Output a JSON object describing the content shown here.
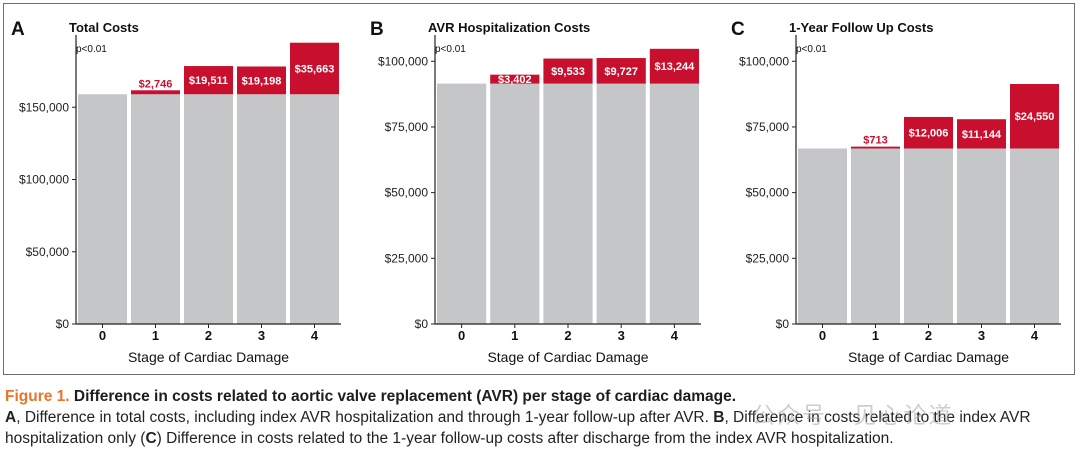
{
  "chart_data": [
    {
      "panel": "A",
      "type": "bar",
      "stacked": true,
      "title": "Total Costs",
      "pvalue": "p<0.01",
      "xlabel": "Stage of Cardiac Damage",
      "ylabel": "",
      "categories": [
        "0",
        "1",
        "2",
        "3",
        "4"
      ],
      "series": [
        {
          "values": [
            159000,
            159000,
            159000,
            159000,
            159000
          ]
        },
        {
          "values": [
            0,
            2746,
            19511,
            19198,
            35663
          ]
        }
      ],
      "bar_labels": [
        "",
        "$2,746",
        "$19,511",
        "$19,198",
        "$35,663"
      ],
      "label_inside": [
        false,
        false,
        true,
        true,
        true
      ],
      "ylim": [
        0,
        200000
      ],
      "yticks": [
        0,
        50000,
        100000,
        150000
      ],
      "ytick_labels": [
        "$0",
        "$50,000",
        "$100,000",
        "$150,000"
      ],
      "grid": false
    },
    {
      "panel": "B",
      "type": "bar",
      "stacked": true,
      "title": "AVR Hospitalization Costs",
      "pvalue": "p<0.01",
      "xlabel": "Stage of Cardiac Damage",
      "ylabel": "",
      "categories": [
        "0",
        "1",
        "2",
        "3",
        "4"
      ],
      "series": [
        {
          "values": [
            91500,
            91500,
            91500,
            91500,
            91500
          ]
        },
        {
          "values": [
            0,
            3402,
            9533,
            9727,
            13244
          ]
        }
      ],
      "bar_labels": [
        "",
        "$3,402",
        "$9,533",
        "$9,727",
        "$13,244"
      ],
      "label_inside": [
        false,
        true,
        true,
        true,
        true
      ],
      "ylim": [
        0,
        110000
      ],
      "yticks": [
        0,
        25000,
        50000,
        75000,
        100000
      ],
      "ytick_labels": [
        "$0",
        "$25,000",
        "$50,000",
        "$75,000",
        "$100,000"
      ],
      "grid": false
    },
    {
      "panel": "C",
      "type": "bar",
      "stacked": true,
      "title": "1-Year Follow Up Costs",
      "pvalue": "p<0.01",
      "xlabel": "Stage of Cardiac Damage",
      "ylabel": "",
      "categories": [
        "0",
        "1",
        "2",
        "3",
        "4"
      ],
      "series": [
        {
          "values": [
            66800,
            66800,
            66800,
            66800,
            66800
          ]
        },
        {
          "values": [
            0,
            713,
            12006,
            11144,
            24550
          ]
        }
      ],
      "bar_labels": [
        "",
        "$713",
        "$12,006",
        "$11,144",
        "$24,550"
      ],
      "label_inside": [
        false,
        false,
        true,
        true,
        true
      ],
      "ylim": [
        0,
        110000
      ],
      "yticks": [
        0,
        25000,
        50000,
        75000,
        100000
      ],
      "ytick_labels": [
        "$0",
        "$25,000",
        "$50,000",
        "$75,000",
        "$100,000"
      ],
      "grid": false
    }
  ],
  "colors": {
    "base": "#c4c6c8",
    "diff": "#c8102e",
    "axis": "#222222",
    "caption_accent": "#e8752b"
  },
  "caption": {
    "fig_label": "Figure 1.",
    "title": "Difference in costs related to aortic valve replacement (AVR) per stage of cardiac damage.",
    "a_letter": "A",
    "a_text": ", Difference in total costs, including index AVR hospitalization and through 1-year follow-up after AVR. ",
    "b_letter": "B",
    "b_text": ", Difference in costs related to the index AVR hospitalization only (",
    "c_letter": "C",
    "c_text": ") Difference in costs related to the 1-year follow-up costs after discharge from the index AVR hospitalization."
  },
  "watermark": "公众号 · 见心论道"
}
